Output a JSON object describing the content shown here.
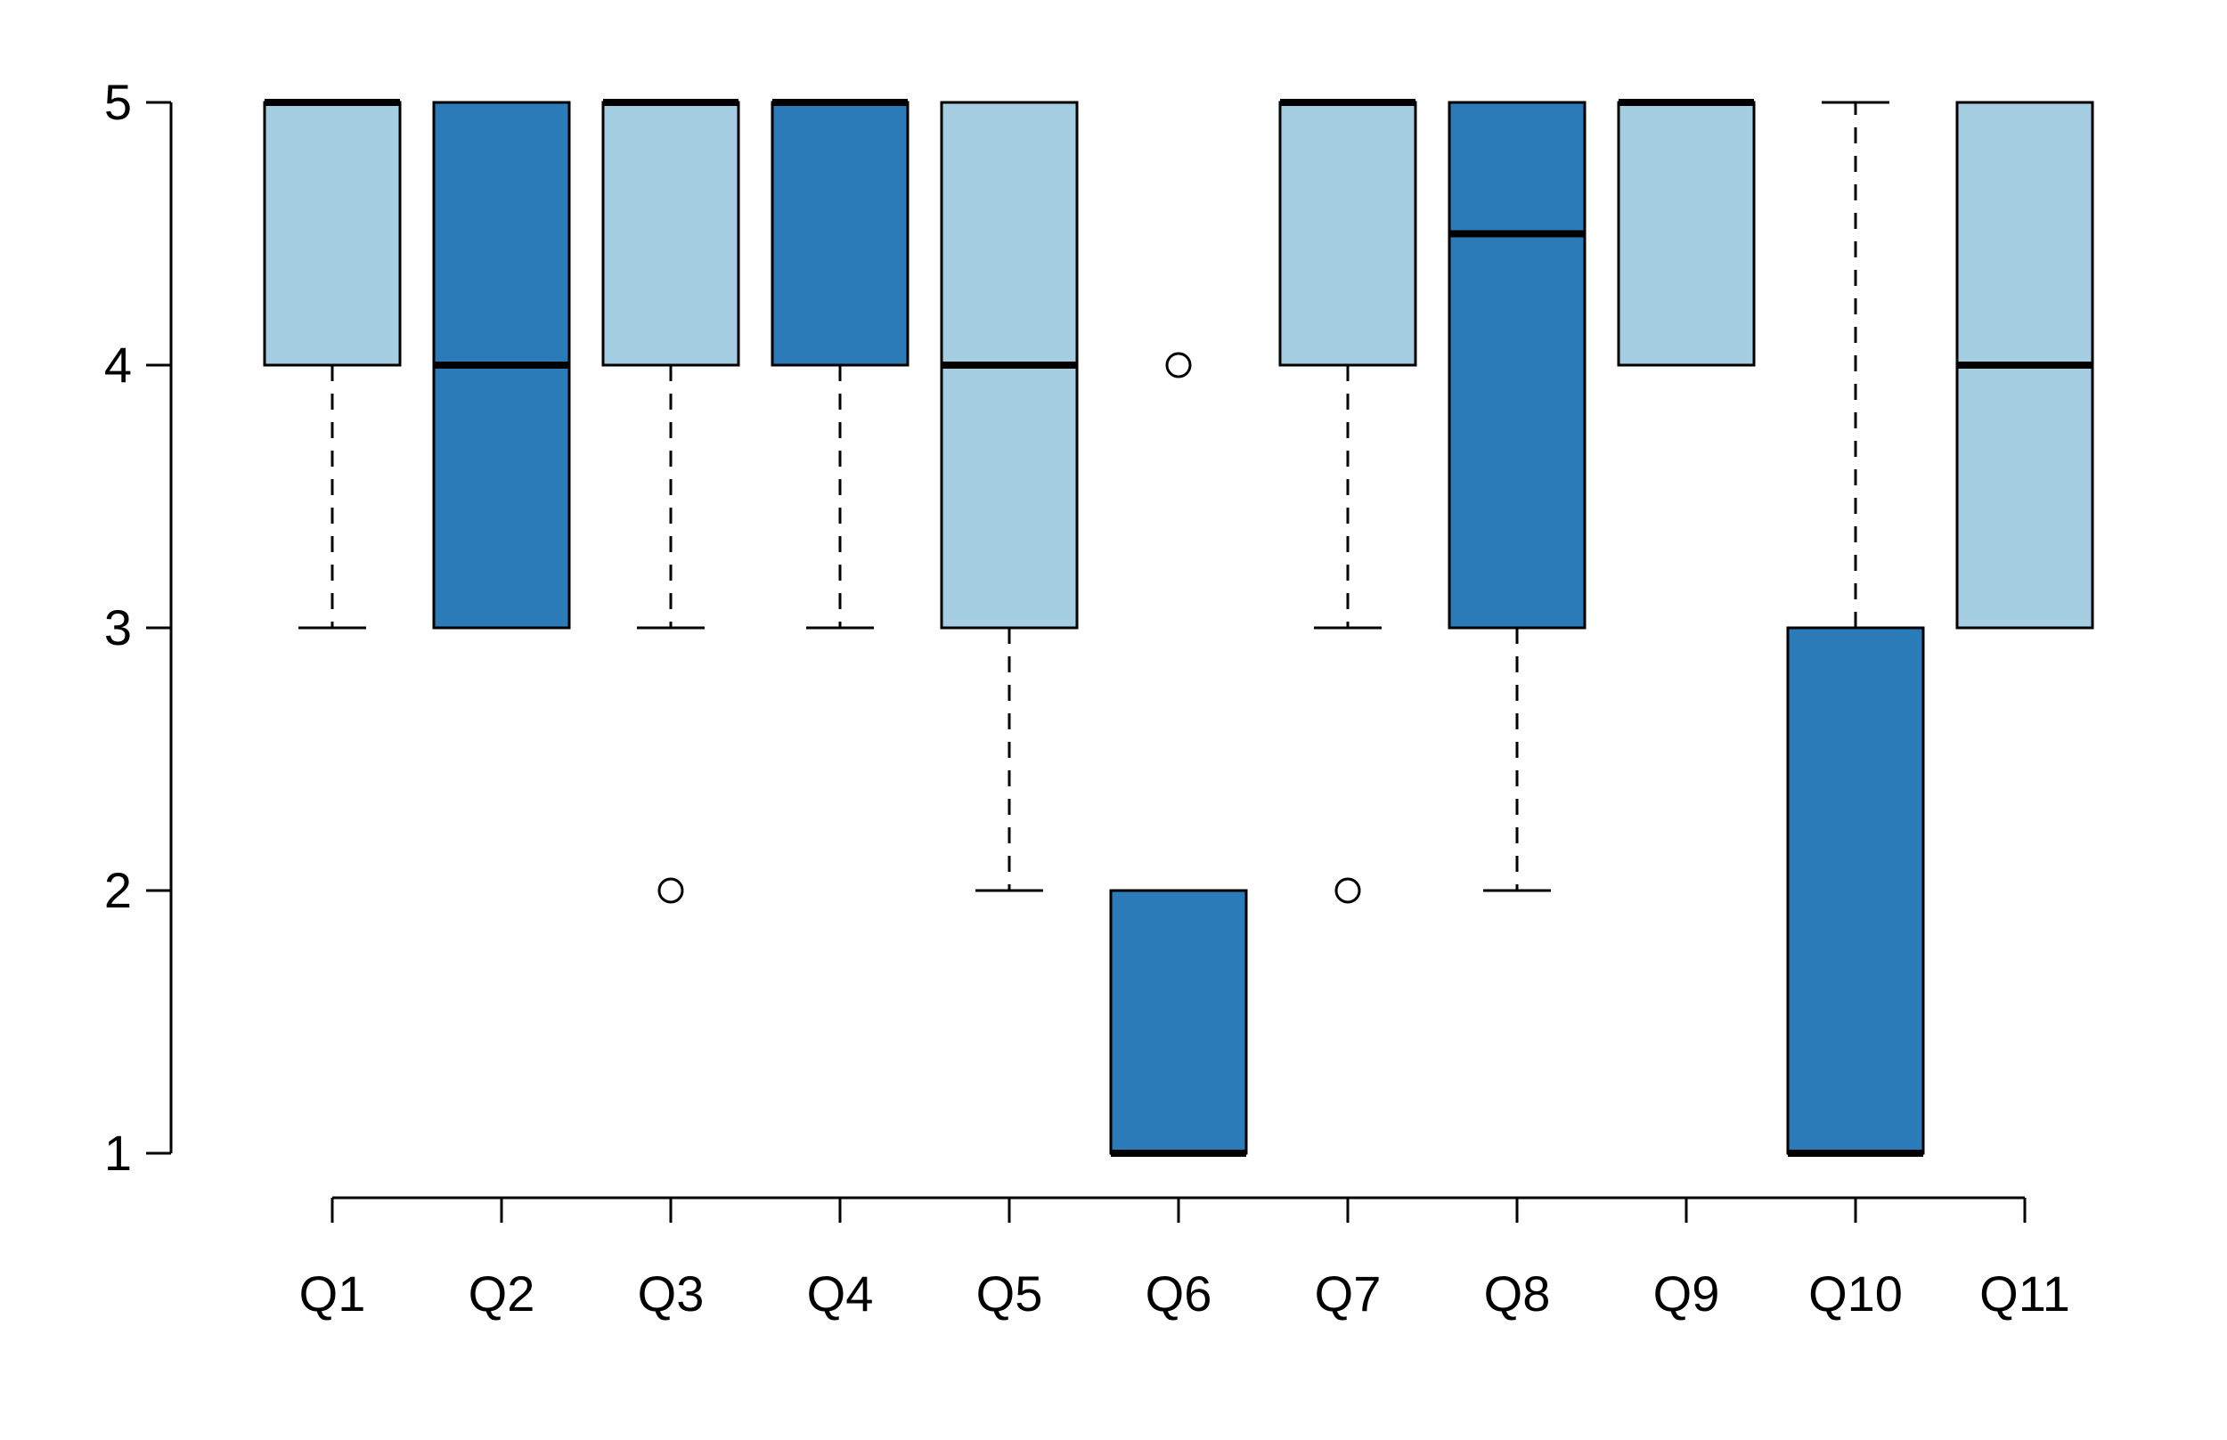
{
  "chart_data": {
    "type": "boxplot",
    "title": "",
    "xlabel": "",
    "ylabel": "",
    "categories": [
      "Q1",
      "Q2",
      "Q3",
      "Q4",
      "Q5",
      "Q6",
      "Q7",
      "Q8",
      "Q9",
      "Q10",
      "Q11"
    ],
    "ylim": [
      1,
      5
    ],
    "yticks": [
      1,
      2,
      3,
      4,
      5
    ],
    "grid": false,
    "legend": "none",
    "palette": {
      "light": "#A6CEE3",
      "dark": "#2B7BB9",
      "stroke": "#000000",
      "outlier_fill": "#FFFFFF",
      "background": "#FFFFFF"
    },
    "boxes": [
      {
        "label": "Q1",
        "color": "light",
        "q1": 4,
        "median": 5,
        "q3": 5,
        "whisker_low": 3,
        "whisker_high": 5,
        "outliers": []
      },
      {
        "label": "Q2",
        "color": "dark",
        "q1": 3,
        "median": 4,
        "q3": 5,
        "whisker_low": 3,
        "whisker_high": 5,
        "outliers": []
      },
      {
        "label": "Q3",
        "color": "light",
        "q1": 4,
        "median": 5,
        "q3": 5,
        "whisker_low": 3,
        "whisker_high": 5,
        "outliers": [
          2
        ]
      },
      {
        "label": "Q4",
        "color": "dark",
        "q1": 4,
        "median": 5,
        "q3": 5,
        "whisker_low": 3,
        "whisker_high": 5,
        "outliers": []
      },
      {
        "label": "Q5",
        "color": "light",
        "q1": 3,
        "median": 4,
        "q3": 5,
        "whisker_low": 2,
        "whisker_high": 5,
        "outliers": []
      },
      {
        "label": "Q6",
        "color": "dark",
        "q1": 1,
        "median": 1,
        "q3": 2,
        "whisker_low": 1,
        "whisker_high": 2,
        "outliers": [
          4
        ]
      },
      {
        "label": "Q7",
        "color": "light",
        "q1": 4,
        "median": 5,
        "q3": 5,
        "whisker_low": 3,
        "whisker_high": 5,
        "outliers": [
          2
        ]
      },
      {
        "label": "Q8",
        "color": "dark",
        "q1": 3,
        "median": 4.5,
        "q3": 5,
        "whisker_low": 2,
        "whisker_high": 5,
        "outliers": []
      },
      {
        "label": "Q9",
        "color": "light",
        "q1": 4,
        "median": 5,
        "q3": 5,
        "whisker_low": 4,
        "whisker_high": 5,
        "outliers": []
      },
      {
        "label": "Q10",
        "color": "dark",
        "q1": 1,
        "median": 1,
        "q3": 3,
        "whisker_low": 1,
        "whisker_high": 5,
        "outliers": []
      },
      {
        "label": "Q11",
        "color": "light",
        "q1": 3,
        "median": 4,
        "q3": 5,
        "whisker_low": 3,
        "whisker_high": 5,
        "outliers": []
      }
    ]
  }
}
